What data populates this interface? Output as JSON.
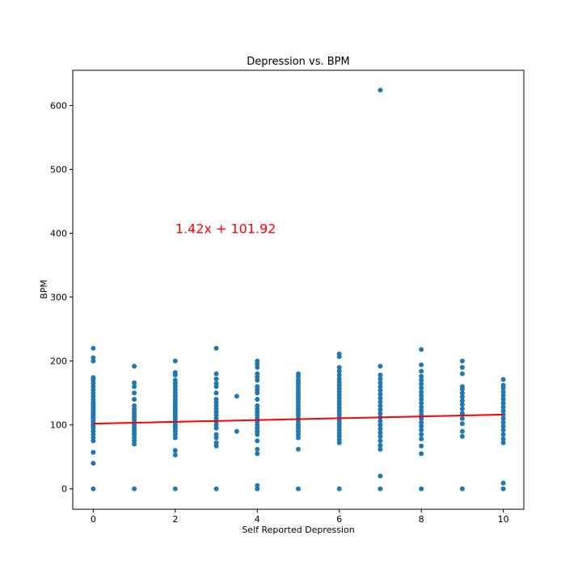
{
  "chart_data": {
    "type": "scatter",
    "title": "Depression vs. BPM",
    "xlabel": "Self Reported Depression",
    "ylabel": "BPM",
    "xlim": [
      -0.5,
      10.5
    ],
    "ylim": [
      -32,
      655
    ],
    "xticks": [
      0,
      2,
      4,
      6,
      8,
      10
    ],
    "yticks": [
      0,
      100,
      200,
      300,
      400,
      500,
      600
    ],
    "grid": false,
    "marker_color": "#1f77b4",
    "line_color": "#ff0000",
    "equation_label": "1.42x + 101.92",
    "regression": {
      "slope": 1.42,
      "intercept": 101.92,
      "x_range": [
        0,
        10
      ]
    },
    "annotation_position_data": {
      "x": 2,
      "y": 400
    },
    "points": [
      [
        0,
        0
      ],
      [
        0,
        40
      ],
      [
        0,
        57
      ],
      [
        0,
        75
      ],
      [
        0,
        80
      ],
      [
        0,
        85
      ],
      [
        0,
        90
      ],
      [
        0,
        95
      ],
      [
        0,
        98
      ],
      [
        0,
        100
      ],
      [
        0,
        103
      ],
      [
        0,
        106
      ],
      [
        0,
        110
      ],
      [
        0,
        112
      ],
      [
        0,
        115
      ],
      [
        0,
        118
      ],
      [
        0,
        120
      ],
      [
        0,
        122
      ],
      [
        0,
        125
      ],
      [
        0,
        128
      ],
      [
        0,
        130
      ],
      [
        0,
        133
      ],
      [
        0,
        136
      ],
      [
        0,
        140
      ],
      [
        0,
        145
      ],
      [
        0,
        150
      ],
      [
        0,
        155
      ],
      [
        0,
        160
      ],
      [
        0,
        165
      ],
      [
        0,
        170
      ],
      [
        0,
        174
      ],
      [
        0,
        200
      ],
      [
        0,
        205
      ],
      [
        0,
        220
      ],
      [
        1,
        0
      ],
      [
        1,
        70
      ],
      [
        1,
        75
      ],
      [
        1,
        80
      ],
      [
        1,
        85
      ],
      [
        1,
        88
      ],
      [
        1,
        92
      ],
      [
        1,
        96
      ],
      [
        1,
        100
      ],
      [
        1,
        104
      ],
      [
        1,
        108
      ],
      [
        1,
        112
      ],
      [
        1,
        116
      ],
      [
        1,
        120
      ],
      [
        1,
        125
      ],
      [
        1,
        130
      ],
      [
        1,
        140
      ],
      [
        1,
        150
      ],
      [
        1,
        160
      ],
      [
        1,
        166
      ],
      [
        1,
        192
      ],
      [
        2,
        0
      ],
      [
        2,
        53
      ],
      [
        2,
        60
      ],
      [
        2,
        80
      ],
      [
        2,
        85
      ],
      [
        2,
        90
      ],
      [
        2,
        95
      ],
      [
        2,
        98
      ],
      [
        2,
        100
      ],
      [
        2,
        104
      ],
      [
        2,
        108
      ],
      [
        2,
        112
      ],
      [
        2,
        116
      ],
      [
        2,
        120
      ],
      [
        2,
        124
      ],
      [
        2,
        128
      ],
      [
        2,
        132
      ],
      [
        2,
        136
      ],
      [
        2,
        140
      ],
      [
        2,
        145
      ],
      [
        2,
        150
      ],
      [
        2,
        155
      ],
      [
        2,
        160
      ],
      [
        2,
        165
      ],
      [
        2,
        170
      ],
      [
        2,
        178
      ],
      [
        2,
        182
      ],
      [
        2,
        200
      ],
      [
        3,
        0
      ],
      [
        3,
        67
      ],
      [
        3,
        72
      ],
      [
        3,
        80
      ],
      [
        3,
        85
      ],
      [
        3,
        95
      ],
      [
        3,
        100
      ],
      [
        3,
        105
      ],
      [
        3,
        110
      ],
      [
        3,
        115
      ],
      [
        3,
        120
      ],
      [
        3,
        125
      ],
      [
        3,
        130
      ],
      [
        3,
        135
      ],
      [
        3,
        140
      ],
      [
        3,
        150
      ],
      [
        3,
        160
      ],
      [
        3,
        165
      ],
      [
        3,
        172
      ],
      [
        3,
        180
      ],
      [
        3,
        220
      ],
      [
        3.5,
        90
      ],
      [
        3.5,
        145
      ],
      [
        4,
        0
      ],
      [
        4,
        5
      ],
      [
        4,
        55
      ],
      [
        4,
        62
      ],
      [
        4,
        75
      ],
      [
        4,
        85
      ],
      [
        4,
        90
      ],
      [
        4,
        95
      ],
      [
        4,
        100
      ],
      [
        4,
        105
      ],
      [
        4,
        110
      ],
      [
        4,
        115
      ],
      [
        4,
        120
      ],
      [
        4,
        125
      ],
      [
        4,
        130
      ],
      [
        4,
        140
      ],
      [
        4,
        150
      ],
      [
        4,
        155
      ],
      [
        4,
        160
      ],
      [
        4,
        170
      ],
      [
        4,
        175
      ],
      [
        4,
        180
      ],
      [
        4,
        190
      ],
      [
        4,
        195
      ],
      [
        4,
        200
      ],
      [
        5,
        0
      ],
      [
        5,
        62
      ],
      [
        5,
        80
      ],
      [
        5,
        85
      ],
      [
        5,
        90
      ],
      [
        5,
        95
      ],
      [
        5,
        100
      ],
      [
        5,
        105
      ],
      [
        5,
        110
      ],
      [
        5,
        115
      ],
      [
        5,
        120
      ],
      [
        5,
        125
      ],
      [
        5,
        130
      ],
      [
        5,
        135
      ],
      [
        5,
        140
      ],
      [
        5,
        145
      ],
      [
        5,
        150
      ],
      [
        5,
        155
      ],
      [
        5,
        160
      ],
      [
        5,
        165
      ],
      [
        5,
        170
      ],
      [
        5,
        176
      ],
      [
        5,
        180
      ],
      [
        6,
        0
      ],
      [
        6,
        72
      ],
      [
        6,
        77
      ],
      [
        6,
        82
      ],
      [
        6,
        87
      ],
      [
        6,
        92
      ],
      [
        6,
        97
      ],
      [
        6,
        102
      ],
      [
        6,
        107
      ],
      [
        6,
        112
      ],
      [
        6,
        117
      ],
      [
        6,
        122
      ],
      [
        6,
        127
      ],
      [
        6,
        132
      ],
      [
        6,
        137
      ],
      [
        6,
        142
      ],
      [
        6,
        147
      ],
      [
        6,
        152
      ],
      [
        6,
        157
      ],
      [
        6,
        162
      ],
      [
        6,
        167
      ],
      [
        6,
        172
      ],
      [
        6,
        178
      ],
      [
        6,
        184
      ],
      [
        6,
        190
      ],
      [
        6,
        207
      ],
      [
        6,
        211
      ],
      [
        7,
        0
      ],
      [
        7,
        20
      ],
      [
        7,
        62
      ],
      [
        7,
        68
      ],
      [
        7,
        75
      ],
      [
        7,
        82
      ],
      [
        7,
        88
      ],
      [
        7,
        94
      ],
      [
        7,
        100
      ],
      [
        7,
        106
      ],
      [
        7,
        112
      ],
      [
        7,
        118
      ],
      [
        7,
        124
      ],
      [
        7,
        130
      ],
      [
        7,
        136
      ],
      [
        7,
        142
      ],
      [
        7,
        148
      ],
      [
        7,
        154
      ],
      [
        7,
        160
      ],
      [
        7,
        166
      ],
      [
        7,
        172
      ],
      [
        7,
        178
      ],
      [
        7,
        192
      ],
      [
        7,
        624
      ],
      [
        8,
        0
      ],
      [
        8,
        55
      ],
      [
        8,
        67
      ],
      [
        8,
        78
      ],
      [
        8,
        85
      ],
      [
        8,
        92
      ],
      [
        8,
        98
      ],
      [
        8,
        104
      ],
      [
        8,
        110
      ],
      [
        8,
        116
      ],
      [
        8,
        122
      ],
      [
        8,
        128
      ],
      [
        8,
        134
      ],
      [
        8,
        140
      ],
      [
        8,
        146
      ],
      [
        8,
        152
      ],
      [
        8,
        158
      ],
      [
        8,
        164
      ],
      [
        8,
        170
      ],
      [
        8,
        176
      ],
      [
        8,
        184
      ],
      [
        8,
        194
      ],
      [
        8,
        218
      ],
      [
        9,
        0
      ],
      [
        9,
        82
      ],
      [
        9,
        90
      ],
      [
        9,
        102
      ],
      [
        9,
        110
      ],
      [
        9,
        118
      ],
      [
        9,
        125
      ],
      [
        9,
        132
      ],
      [
        9,
        138
      ],
      [
        9,
        144
      ],
      [
        9,
        150
      ],
      [
        9,
        156
      ],
      [
        9,
        160
      ],
      [
        9,
        180
      ],
      [
        9,
        190
      ],
      [
        9,
        200
      ],
      [
        10,
        0
      ],
      [
        10,
        9
      ],
      [
        10,
        72
      ],
      [
        10,
        78
      ],
      [
        10,
        85
      ],
      [
        10,
        92
      ],
      [
        10,
        98
      ],
      [
        10,
        104
      ],
      [
        10,
        110
      ],
      [
        10,
        116
      ],
      [
        10,
        122
      ],
      [
        10,
        128
      ],
      [
        10,
        134
      ],
      [
        10,
        140
      ],
      [
        10,
        146
      ],
      [
        10,
        152
      ],
      [
        10,
        158
      ],
      [
        10,
        162
      ],
      [
        10,
        171
      ]
    ]
  }
}
